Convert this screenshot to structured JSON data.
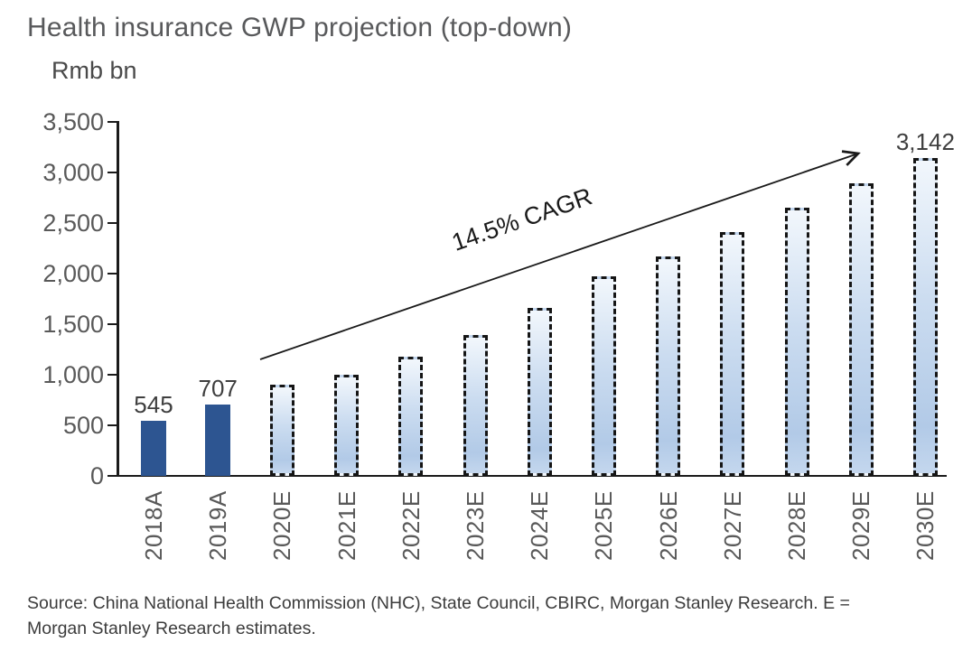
{
  "header": {
    "title": "Health insurance GWP projection (top-down)",
    "unit_label": "Rmb bn"
  },
  "chart_data": {
    "type": "bar",
    "title": "Health insurance GWP projection (top-down)",
    "ylabel": "Rmb bn",
    "categories": [
      "2018A",
      "2019A",
      "2020E",
      "2021E",
      "2022E",
      "2023E",
      "2024E",
      "2025E",
      "2026E",
      "2027E",
      "2028E",
      "2029E",
      "2030E"
    ],
    "values": [
      545,
      707,
      900,
      1000,
      1180,
      1390,
      1660,
      1970,
      2170,
      2410,
      2650,
      2890,
      3142
    ],
    "bar_labels": [
      "545",
      "707",
      "",
      "",
      "",
      "",
      "",
      "",
      "",
      "",
      "",
      "",
      "3,142"
    ],
    "series_styles": [
      "actual",
      "actual",
      "estimate",
      "estimate",
      "estimate",
      "estimate",
      "estimate",
      "estimate",
      "estimate",
      "estimate",
      "estimate",
      "estimate",
      "estimate"
    ],
    "ylim": [
      0,
      3500
    ],
    "ytick_step": 500,
    "ytick_labels_top_to_bottom": [
      "3,500",
      "3,000",
      "2,500",
      "2,000",
      "1,500",
      "1,000",
      "500",
      "0"
    ],
    "grid": "off",
    "legend": "none",
    "annotation": {
      "text": "14.5% CAGR",
      "arrow": "diagonal up-right from above 2020E bar to above 2029E bar"
    },
    "colors": {
      "actual_bar": "#2d5591",
      "estimate_fill_top": "#f2f7fc",
      "estimate_fill_bottom": "#b2cae7",
      "estimate_border": "#151515",
      "axis": "#1a1a1a",
      "axis_text": "#595959",
      "title_text": "#58595b"
    }
  },
  "footer": {
    "source_line1": "Source: China National Health Commission (NHC), State Council, CBIRC, Morgan Stanley Research. E =",
    "source_line2": "Morgan Stanley Research estimates."
  }
}
